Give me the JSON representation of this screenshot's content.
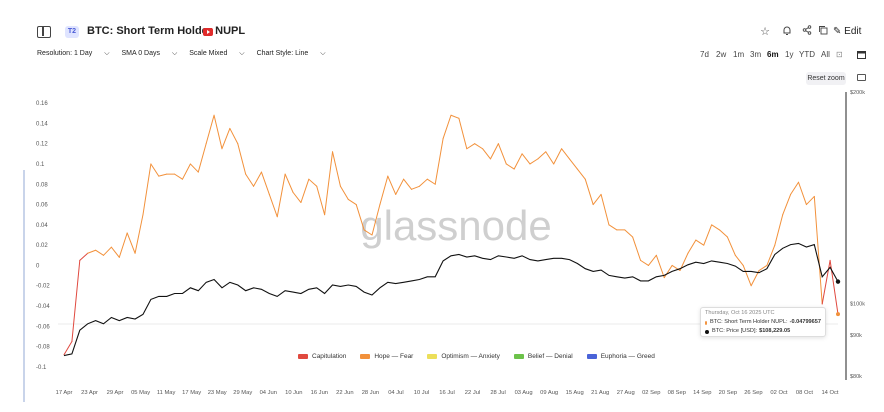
{
  "header": {
    "tier_badge": "T2",
    "title": "BTC: Short Term Holder NUPL",
    "edit_label": "Edit"
  },
  "toolbar": {
    "resolution": "Resolution: 1 Day",
    "sma": "SMA 0 Days",
    "scale": "Scale Mixed",
    "chart_style": "Chart Style: Line"
  },
  "ranges": [
    "7d",
    "2w",
    "1m",
    "3m",
    "6m",
    "1y",
    "YTD",
    "All"
  ],
  "active_range": "6m",
  "reset_zoom_label": "Reset zoom",
  "watermark": "glassnode",
  "tooltip": {
    "date": "Thursday, Oct 16 2025 UTC",
    "nupl_label": "BTC: Short Term Holder NUPL:",
    "nupl_value": "-0.04799657",
    "price_label": "BTC: Price [USD]:",
    "price_value": "$108,229.05"
  },
  "legend": [
    {
      "name": "Capitulation",
      "color": "#e0493f"
    },
    {
      "name": "Hope — Fear",
      "color": "#f2913b"
    },
    {
      "name": "Optimism — Anxiety",
      "color": "#ecdf5a"
    },
    {
      "name": "Belief — Denial",
      "color": "#6cc24a"
    },
    {
      "name": "Euphoria — Greed",
      "color": "#4a63d8"
    }
  ],
  "chart_data": {
    "type": "line",
    "x_ticks": [
      "17 Apr",
      "23 Apr",
      "29 Apr",
      "05 May",
      "11 May",
      "17 May",
      "23 May",
      "29 May",
      "04 Jun",
      "10 Jun",
      "16 Jun",
      "22 Jun",
      "28 Jun",
      "04 Jul",
      "10 Jul",
      "16 Jul",
      "22 Jul",
      "28 Jul",
      "03 Aug",
      "09 Aug",
      "15 Aug",
      "21 Aug",
      "27 Aug",
      "02 Sep",
      "08 Sep",
      "14 Sep",
      "20 Sep",
      "26 Sep",
      "02 Oct",
      "08 Oct",
      "14 Oct"
    ],
    "y_left_ticks": [
      "0.16",
      "0.14",
      "0.12",
      "0.1",
      "0.08",
      "0.06",
      "0.04",
      "0.02",
      "0",
      "-0.02",
      "-0.04",
      "-0.06",
      "-0.08",
      "-0.1"
    ],
    "y_right_ticks": [
      "$200k",
      "$100k",
      "$90k",
      "$80k"
    ],
    "ylim_left": [
      -0.105,
      0.165
    ],
    "ylim_right_log": [
      80000,
      200000
    ],
    "series": [
      {
        "name": "BTC: Short Term Holder NUPL",
        "axis": "left",
        "values": [
          -0.088,
          -0.075,
          0.005,
          0.012,
          0.015,
          0.01,
          0.018,
          0.008,
          0.032,
          0.012,
          0.05,
          0.1,
          0.088,
          0.09,
          0.09,
          0.085,
          0.1,
          0.092,
          0.12,
          0.148,
          0.115,
          0.135,
          0.12,
          0.09,
          0.078,
          0.092,
          0.07,
          0.048,
          0.09,
          0.072,
          0.062,
          0.085,
          0.078,
          0.05,
          0.112,
          0.078,
          0.065,
          0.06,
          0.035,
          0.03,
          0.06,
          0.088,
          0.07,
          0.085,
          0.075,
          0.078,
          0.085,
          0.08,
          0.125,
          0.148,
          0.145,
          0.115,
          0.12,
          0.115,
          0.105,
          0.12,
          0.1,
          0.095,
          0.11,
          0.1,
          0.105,
          0.112,
          0.1,
          0.115,
          0.105,
          0.095,
          0.085,
          0.06,
          0.07,
          0.04,
          0.035,
          0.035,
          0.028,
          0.005,
          0.0,
          0.01,
          -0.012,
          0.0,
          -0.005,
          0.012,
          0.025,
          0.02,
          0.04,
          0.035,
          0.028,
          0.01,
          0.0,
          -0.02,
          -0.005,
          0.0,
          0.02,
          0.05,
          0.07,
          0.082,
          0.06,
          0.068,
          -0.038,
          0.005,
          -0.048
        ],
        "color": "#f2913b"
      },
      {
        "name": "BTC: Price [USD]",
        "axis": "right",
        "values": [
          84500,
          85000,
          92000,
          94000,
          95000,
          94000,
          96000,
          95000,
          96000,
          95500,
          97000,
          102000,
          103000,
          103000,
          104000,
          104000,
          106000,
          105000,
          108000,
          109000,
          106000,
          108000,
          107000,
          105000,
          106000,
          105500,
          104000,
          103000,
          105000,
          104500,
          104000,
          105500,
          106000,
          104000,
          107000,
          106500,
          107000,
          106500,
          104500,
          103500,
          106000,
          108000,
          107500,
          108000,
          108500,
          109000,
          110000,
          110000,
          116000,
          118000,
          118500,
          117500,
          118000,
          117000,
          116500,
          118000,
          117500,
          117000,
          118000,
          116500,
          116000,
          116500,
          117000,
          117000,
          116500,
          115000,
          113000,
          112000,
          112500,
          110500,
          110000,
          109500,
          110000,
          108500,
          108500,
          110000,
          110500,
          112000,
          113000,
          114500,
          115500,
          115000,
          116000,
          115500,
          115000,
          114000,
          112000,
          112000,
          111500,
          113000,
          118500,
          121000,
          122500,
          123000,
          121500,
          122500,
          110000,
          113500,
          108229
        ]
      }
    ],
    "highlighted_date": "Thursday, Oct 16 2025 UTC"
  }
}
